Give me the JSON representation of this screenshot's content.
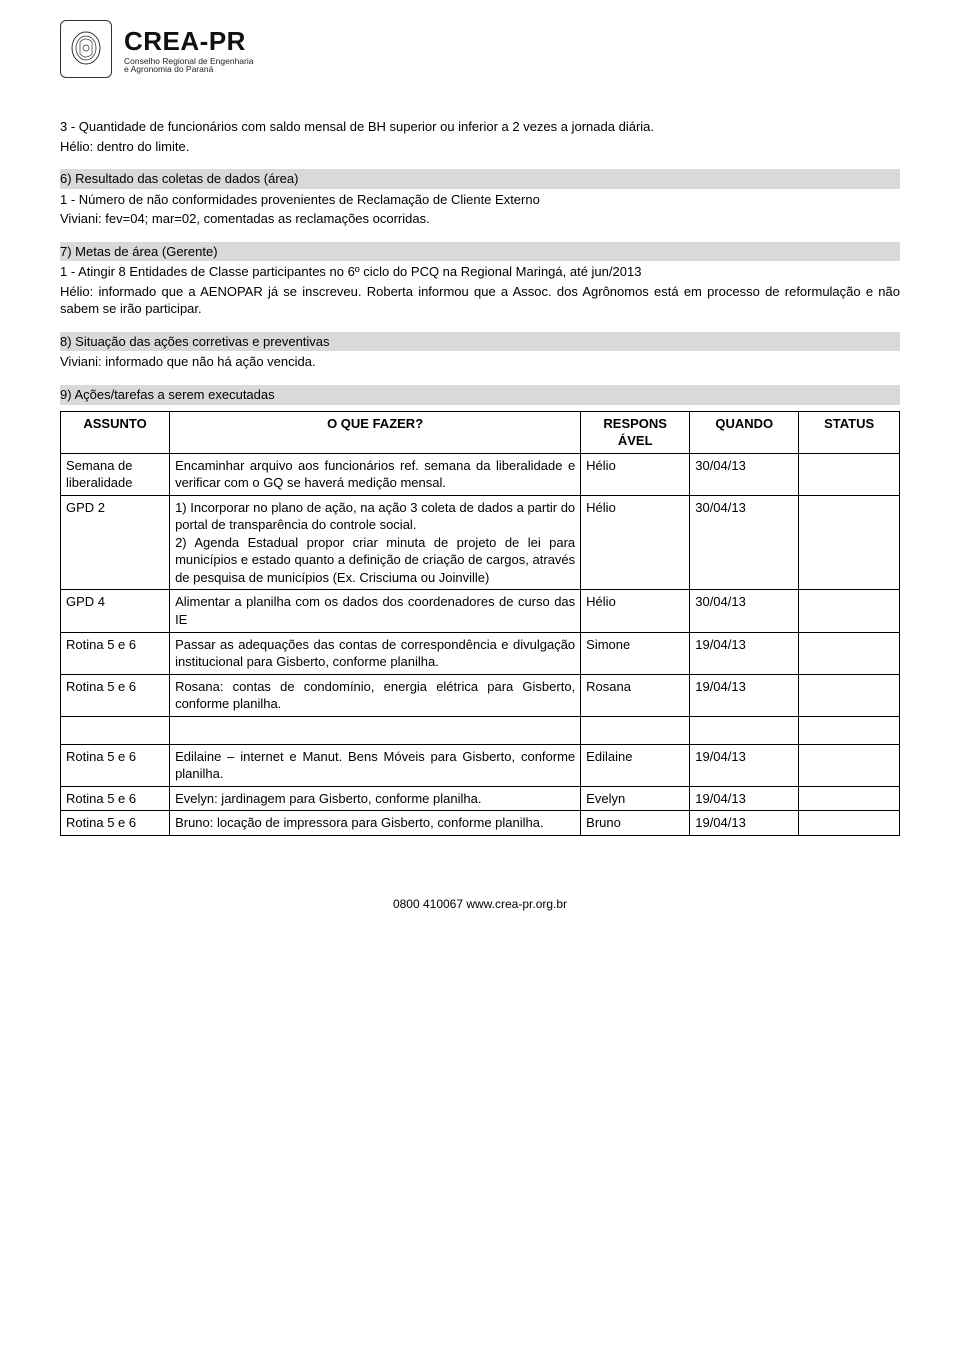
{
  "logo": {
    "main": "CREA-PR",
    "sub1": "Conselho Regional de Engenharia",
    "sub2": "e Agronomia do Paraná"
  },
  "blocks": [
    {
      "type": "plain",
      "lines": [
        "3 - Quantidade de funcionários com saldo mensal de BH superior ou inferior a 2 vezes a jornada diária.",
        "Hélio: dentro do limite."
      ]
    },
    {
      "type": "heading",
      "text": "6) Resultado das coletas de dados (área)",
      "lines": [
        "1 - Número de não conformidades provenientes de Reclamação de Cliente Externo",
        "Viviani: fev=04; mar=02, comentadas as reclamações ocorridas."
      ]
    },
    {
      "type": "heading",
      "text": "7) Metas de área (Gerente)",
      "lines": [
        "1 - Atingir 8 Entidades de Classe participantes no 6º ciclo do PCQ na Regional Maringá, até jun/2013",
        "Hélio: informado que a AENOPAR já se inscreveu. Roberta informou que a Assoc. dos Agrônomos está em processo de reformulação e não sabem se irão participar."
      ]
    },
    {
      "type": "heading",
      "text": "8) Situação das ações corretivas e preventivas",
      "lines": [
        "Viviani: informado que não há ação vencida."
      ]
    },
    {
      "type": "heading",
      "text": "9) Ações/tarefas a serem executadas",
      "lines": []
    }
  ],
  "table": {
    "headers": {
      "assunto": "ASSUNTO",
      "oque": "O QUE FAZER?",
      "resp": "RESPONS ÁVEL",
      "quando": "QUANDO",
      "status": "STATUS"
    },
    "rows": [
      {
        "assunto": "Semana de liberalidade",
        "oque": "Encaminhar arquivo aos funcionários ref. semana da liberalidade e verificar com o GQ se haverá medição mensal.",
        "resp": "Hélio",
        "quando": "30/04/13",
        "status": ""
      },
      {
        "assunto": "GPD 2",
        "oque": "1) Incorporar no plano de ação, na ação 3 coleta de dados a partir do portal de transparência do controle social.\n2) Agenda Estadual propor criar minuta de projeto de lei para municípios e estado quanto a definição de criação de cargos, através de pesquisa de municípios (Ex. Crisciuma ou Joinville)",
        "resp": "Hélio",
        "quando": "30/04/13",
        "status": ""
      },
      {
        "assunto": "GPD 4",
        "oque": "Alimentar a planilha com os dados dos coordenadores de curso das IE",
        "resp": "Hélio",
        "quando": "30/04/13",
        "status": ""
      },
      {
        "assunto": "Rotina 5 e 6",
        "oque": "Passar as adequações das contas de correspondência e divulgação institucional para Gisberto, conforme planilha.",
        "resp": "Simone",
        "quando": "19/04/13",
        "status": ""
      },
      {
        "assunto": "Rotina 5 e 6",
        "oque": "Rosana: contas de condomínio, energia elétrica para Gisberto, conforme planilha.",
        "resp": "Rosana",
        "quando": "19/04/13",
        "status": ""
      },
      {
        "assunto": "",
        "oque": "",
        "resp": "",
        "quando": "",
        "status": "",
        "spacer": true
      },
      {
        "assunto": "Rotina 5 e 6",
        "oque": "Edilaine – internet e Manut. Bens Móveis para Gisberto, conforme planilha.",
        "resp": "Edilaine",
        "quando": "19/04/13",
        "status": ""
      },
      {
        "assunto": "Rotina 5 e 6",
        "oque": "Evelyn: jardinagem para Gisberto, conforme planilha.",
        "resp": "Evelyn",
        "quando": "19/04/13",
        "status": ""
      },
      {
        "assunto": "Rotina 5 e 6",
        "oque": "Bruno: locação de impressora para Gisberto, conforme planilha.",
        "resp": "Bruno",
        "quando": "19/04/13",
        "status": ""
      }
    ]
  },
  "footer": "0800 410067 www.crea-pr.org.br"
}
